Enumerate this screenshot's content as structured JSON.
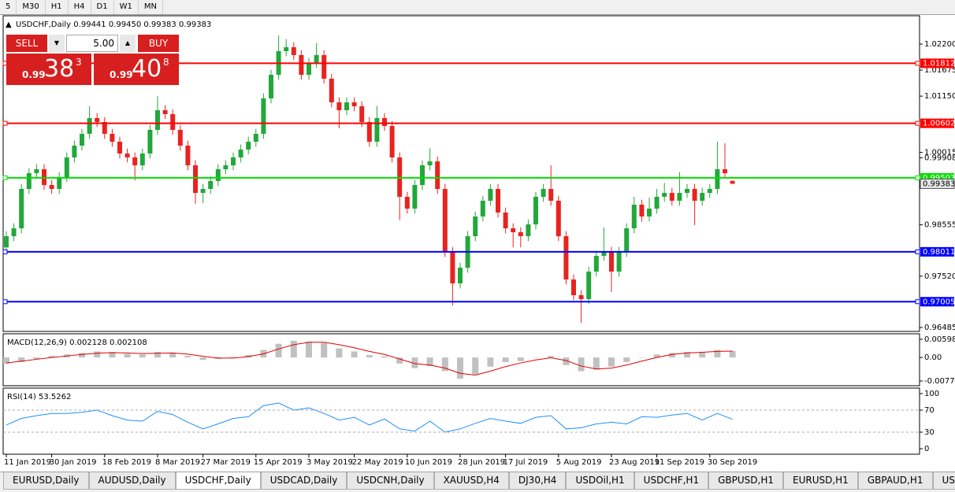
{
  "toolbar": {
    "timeframes": [
      "5",
      "M30",
      "H1",
      "H4",
      "D1",
      "W1",
      "MN"
    ]
  },
  "trade_panel": {
    "sell": "SELL",
    "lots": "5.00",
    "buy": "BUY",
    "bid": {
      "big_figure": "0.99",
      "pips": "38",
      "fraction": "3"
    },
    "ask": {
      "big_figure": "0.99",
      "pips": "40",
      "fraction": "8"
    }
  },
  "tabs": {
    "items": [
      "EURUSD,Daily",
      "AUDUSD,Daily",
      "USDCHF,Daily",
      "USDCAD,Daily",
      "USDCNH,Daily",
      "XAUUSD,H4",
      "DJ30,H4",
      "USDOil,H1",
      "USDCHF,H1",
      "GBPUSD,H1",
      "EURUSD,H1",
      "GBPAUD,H1",
      "USDJP"
    ],
    "active": 2
  },
  "chart_data": [
    {
      "type": "candlestick",
      "title": "USDCHF,Daily",
      "ohlc_labels": [
        "0.99441",
        "0.99450",
        "0.99383",
        "0.99383"
      ],
      "up_color": "#22a83a",
      "down_color": "#e8231f",
      "ylim": [
        0.96406,
        1.02771
      ],
      "yticks": [
        {
          "value": 1.022,
          "label": "1.02200"
        },
        {
          "value": 1.01675,
          "label": "1.01675"
        },
        {
          "value": 1.0115,
          "label": "1.01150"
        },
        {
          "value": 1.00015,
          "label": "1.00015"
        },
        {
          "value": 0.99908,
          "label": "0.99908"
        },
        {
          "value": 0.98555,
          "label": "0.98555"
        },
        {
          "value": 0.9752,
          "label": "0.97520"
        },
        {
          "value": 0.96485,
          "label": "0.96485"
        }
      ],
      "xticks": [
        {
          "value": 0,
          "label": "11 Jan 2019"
        },
        {
          "value": 6,
          "label": "30 Jan 2019"
        },
        {
          "value": 13,
          "label": "18 Feb 2019"
        },
        {
          "value": 20,
          "label": "8 Mar 2019"
        },
        {
          "value": 26,
          "label": "27 Mar 2019"
        },
        {
          "value": 33,
          "label": "15 Apr 2019"
        },
        {
          "value": 40,
          "label": "3 May 2019"
        },
        {
          "value": 46,
          "label": "22 May 2019"
        },
        {
          "value": 53,
          "label": "10 Jun 2019"
        },
        {
          "value": 60,
          "label": "28 Jun 2019"
        },
        {
          "value": 66,
          "label": "17 Jul 2019"
        },
        {
          "value": 73,
          "label": "5 Aug 2019"
        },
        {
          "value": 80,
          "label": "23 Aug 2019"
        },
        {
          "value": 86,
          "label": "11 Sep 2019"
        },
        {
          "value": 93,
          "label": "30 Sep 2019"
        }
      ],
      "levels": [
        {
          "value": 1.01812,
          "color": "#ff0000"
        },
        {
          "value": 1.00602,
          "color": "#ff0000"
        },
        {
          "value": 0.99503,
          "color": "#00e000"
        },
        {
          "value": 0.98011,
          "color": "#0000ff"
        },
        {
          "value": 0.97005,
          "color": "#0000ff"
        }
      ],
      "candles": [
        [
          0.981,
          0.98426,
          0.98,
          0.98326
        ],
        [
          0.98326,
          0.98585,
          0.98226,
          0.98485
        ],
        [
          0.98485,
          0.99379,
          0.98385,
          0.99279
        ],
        [
          0.99279,
          0.99696,
          0.99179,
          0.99596
        ],
        [
          0.99596,
          0.99776,
          0.99496,
          0.99676
        ],
        [
          0.99676,
          0.99776,
          0.99258,
          0.99358
        ],
        [
          0.99358,
          0.99458,
          0.99179,
          0.99279
        ],
        [
          0.99279,
          0.99617,
          0.99179,
          0.99517
        ],
        [
          0.99517,
          1.00014,
          0.99417,
          0.99914
        ],
        [
          0.99914,
          1.00252,
          0.99814,
          1.00152
        ],
        [
          1.00152,
          1.0049,
          1.00052,
          1.0039
        ],
        [
          1.0039,
          1.0095,
          1.0029,
          1.00708
        ],
        [
          1.00708,
          1.00808,
          1.00528,
          1.00628
        ],
        [
          1.00628,
          1.00728,
          1.0029,
          1.0039
        ],
        [
          1.0039,
          1.0049,
          1.00131,
          1.00231
        ],
        [
          1.00231,
          1.00331,
          0.99893,
          0.99993
        ],
        [
          0.99993,
          1.00093,
          0.99814,
          0.99914
        ],
        [
          0.99914,
          1.00014,
          0.9945,
          0.99755
        ],
        [
          0.99755,
          1.00093,
          0.99655,
          0.99993
        ],
        [
          0.99993,
          1.0057,
          0.99893,
          1.0047
        ],
        [
          1.0047,
          1.0115,
          1.0037,
          1.00866
        ],
        [
          1.00866,
          1.00966,
          1.00687,
          1.00787
        ],
        [
          1.00787,
          1.00887,
          1.0037,
          1.0047
        ],
        [
          1.0047,
          1.0057,
          1.00052,
          1.00152
        ],
        [
          1.00152,
          1.00252,
          0.99655,
          0.99755
        ],
        [
          0.99755,
          0.99855,
          0.9898,
          0.99199
        ],
        [
          0.99199,
          0.99379,
          0.9899,
          0.99279
        ],
        [
          0.99279,
          0.99538,
          0.99179,
          0.99438
        ],
        [
          0.99438,
          0.99776,
          0.99338,
          0.99676
        ],
        [
          0.99676,
          0.99855,
          0.99576,
          0.99755
        ],
        [
          0.99755,
          1.00014,
          0.99655,
          0.99914
        ],
        [
          0.99914,
          1.00173,
          0.99814,
          1.00073
        ],
        [
          1.00073,
          1.00331,
          0.99973,
          1.00231
        ],
        [
          1.00231,
          1.0049,
          1.00131,
          1.0039
        ],
        [
          1.0039,
          1.01205,
          1.0029,
          1.01105
        ],
        [
          1.01105,
          1.01681,
          1.01005,
          1.01581
        ],
        [
          1.01581,
          1.02375,
          1.01481,
          1.02057
        ],
        [
          1.02057,
          1.023,
          1.01957,
          1.02136
        ],
        [
          1.02136,
          1.02236,
          1.01878,
          1.01978
        ],
        [
          1.01978,
          1.02078,
          1.01481,
          1.01581
        ],
        [
          1.01581,
          1.01919,
          1.01481,
          1.01819
        ],
        [
          1.01819,
          1.0222,
          1.01719,
          1.01978
        ],
        [
          1.01978,
          1.02078,
          1.01401,
          1.01501
        ],
        [
          1.01501,
          1.01601,
          1.00925,
          1.01025
        ],
        [
          1.01025,
          1.01125,
          1.005,
          1.00866
        ],
        [
          1.00866,
          1.01125,
          1.00766,
          1.01025
        ],
        [
          1.01025,
          1.01125,
          1.00846,
          1.00946
        ],
        [
          1.00946,
          1.01046,
          1.00528,
          1.00628
        ],
        [
          1.00628,
          1.00728,
          1.00131,
          1.00231
        ],
        [
          1.00231,
          1.0095,
          1.00131,
          1.00708
        ],
        [
          1.00708,
          1.00808,
          1.00449,
          1.00549
        ],
        [
          1.00549,
          1.00649,
          0.99814,
          0.99914
        ],
        [
          0.99914,
          1.00014,
          0.9865,
          0.9912
        ],
        [
          0.9912,
          0.9922,
          0.98782,
          0.98882
        ],
        [
          0.98882,
          0.99458,
          0.98782,
          0.99358
        ],
        [
          0.99358,
          0.99855,
          0.99258,
          0.99755
        ],
        [
          0.99755,
          1.001,
          0.99655,
          0.99834
        ],
        [
          0.99834,
          0.99934,
          0.99179,
          0.99279
        ],
        [
          0.99279,
          0.99379,
          0.97909,
          0.98009
        ],
        [
          0.98009,
          0.98109,
          0.96929,
          0.97374
        ],
        [
          0.97374,
          0.97791,
          0.97274,
          0.97691
        ],
        [
          0.97691,
          0.98426,
          0.97591,
          0.98326
        ],
        [
          0.98326,
          0.98823,
          0.98226,
          0.98723
        ],
        [
          0.98723,
          0.99141,
          0.98623,
          0.99041
        ],
        [
          0.99041,
          0.99379,
          0.98941,
          0.99279
        ],
        [
          0.99279,
          0.99379,
          0.98703,
          0.98803
        ],
        [
          0.98803,
          0.98903,
          0.98385,
          0.98485
        ],
        [
          0.98485,
          0.98585,
          0.981,
          0.98406
        ],
        [
          0.98406,
          0.98506,
          0.981,
          0.98326
        ],
        [
          0.98326,
          0.98664,
          0.98226,
          0.98564
        ],
        [
          0.98564,
          0.9922,
          0.98464,
          0.9912
        ],
        [
          0.9912,
          0.99379,
          0.9902,
          0.99279
        ],
        [
          0.99279,
          0.99755,
          0.98941,
          0.99041
        ],
        [
          0.99041,
          0.99141,
          0.98226,
          0.98326
        ],
        [
          0.98326,
          0.98426,
          0.97353,
          0.97453
        ],
        [
          0.97453,
          0.97553,
          0.97036,
          0.97136
        ],
        [
          0.97136,
          0.97236,
          0.9658,
          0.97056
        ],
        [
          0.97056,
          0.97712,
          0.96956,
          0.97612
        ],
        [
          0.97612,
          0.98029,
          0.97512,
          0.97929
        ],
        [
          0.97929,
          0.985,
          0.97829,
          0.98009
        ],
        [
          0.98009,
          0.98109,
          0.972,
          0.97612
        ],
        [
          0.97612,
          0.98109,
          0.97512,
          0.98009
        ],
        [
          0.98009,
          0.98585,
          0.97909,
          0.98485
        ],
        [
          0.98485,
          0.9912,
          0.98385,
          0.98961
        ],
        [
          0.98961,
          0.99061,
          0.98623,
          0.98723
        ],
        [
          0.98723,
          0.991,
          0.98623,
          0.98882
        ],
        [
          0.98882,
          0.99279,
          0.98782,
          0.9912
        ],
        [
          0.9912,
          0.994,
          0.9902,
          0.99199
        ],
        [
          0.99199,
          0.99299,
          0.98941,
          0.99041
        ],
        [
          0.99041,
          0.9962,
          0.98941,
          0.99199
        ],
        [
          0.99199,
          0.99379,
          0.99099,
          0.99279
        ],
        [
          0.99279,
          0.99379,
          0.9855,
          0.99041
        ],
        [
          0.99041,
          0.99299,
          0.98941,
          0.99199
        ],
        [
          0.99199,
          0.99379,
          0.99099,
          0.99279
        ],
        [
          0.99279,
          1.00231,
          0.99179,
          0.99676
        ],
        [
          0.99676,
          1.002,
          0.99496,
          0.99596
        ],
        [
          0.99441,
          0.9945,
          0.99383,
          0.99383
        ]
      ]
    },
    {
      "type": "macd",
      "title": "MACD(12,26,9)",
      "ylim": [
        -0.009291,
        0.007799
      ],
      "yticks": [
        0.005986,
        {
          "value": 0,
          "label": "0.00"
        },
        -0.007737
      ],
      "x": [
        0,
        2,
        4,
        6,
        8,
        10,
        12,
        14,
        16,
        18,
        20,
        22,
        24,
        26,
        28,
        30,
        32,
        34,
        36,
        38,
        40,
        42,
        44,
        46,
        48,
        50,
        52,
        54,
        56,
        58,
        60,
        62,
        64,
        66,
        68,
        70,
        72,
        74,
        76,
        78,
        80,
        82,
        84,
        86,
        88,
        90,
        92,
        94,
        96
      ],
      "series": [
        {
          "kind": "bar",
          "color": "#c0c0c0",
          "values": [
            -0.002,
            -0.0015,
            -0.0005,
            0.0005,
            0.001,
            0.0015,
            0.002,
            0.0018,
            0.0012,
            0.001,
            0.0018,
            0.0015,
            0.0005,
            -0.0008,
            -0.0005,
            0.0002,
            0.0008,
            0.0025,
            0.0045,
            0.0055,
            0.0052,
            0.0048,
            0.003,
            0.002,
            0.0008,
            0.0004,
            -0.002,
            -0.0035,
            -0.0028,
            -0.0045,
            -0.007,
            -0.0055,
            -0.003,
            -0.0015,
            -0.0012,
            0,
            0.0005,
            -0.0025,
            -0.0045,
            -0.004,
            -0.003,
            -0.0015,
            0,
            0.001,
            0.0015,
            0.0018,
            0.0018,
            0.0025,
            0.002128
          ]
        },
        {
          "kind": "line",
          "color": "#e00000",
          "values": [
            -0.0018,
            -0.0012,
            -0.0006,
            0,
            0.0005,
            0.001,
            0.0014,
            0.0016,
            0.0015,
            0.0013,
            0.0014,
            0.0015,
            0.0011,
            0.0004,
            -0.0002,
            -0.0002,
            0.0003,
            0.0012,
            0.0028,
            0.0042,
            0.005,
            0.005,
            0.0042,
            0.0032,
            0.002,
            0.001,
            -0.0005,
            -0.002,
            -0.0025,
            -0.0035,
            -0.0052,
            -0.0058,
            -0.0045,
            -0.003,
            -0.0018,
            -0.0008,
            -0.0001,
            -0.001,
            -0.0028,
            -0.0038,
            -0.0035,
            -0.0025,
            -0.0012,
            0,
            0.001,
            0.0015,
            0.0017,
            0.002,
            0.002108
          ]
        }
      ]
    },
    {
      "type": "line",
      "title": "RSI(14)",
      "color": "#1e90ff",
      "ylim": [
        -10,
        110
      ],
      "yticks": [
        100,
        70,
        30,
        0
      ],
      "levels": [
        70,
        30
      ],
      "x": [
        0,
        2,
        4,
        6,
        8,
        10,
        12,
        14,
        16,
        18,
        20,
        22,
        24,
        26,
        28,
        30,
        32,
        34,
        36,
        38,
        40,
        42,
        44,
        46,
        48,
        50,
        52,
        54,
        56,
        58,
        60,
        62,
        64,
        66,
        68,
        70,
        72,
        74,
        76,
        78,
        80,
        82,
        84,
        86,
        88,
        90,
        92,
        94,
        96
      ],
      "values": [
        43,
        55,
        60,
        64,
        64,
        66,
        70,
        60,
        52,
        50,
        68,
        62,
        48,
        36,
        45,
        55,
        58,
        78,
        83,
        70,
        74,
        64,
        52,
        57,
        43,
        54,
        36,
        32,
        50,
        30,
        36,
        46,
        55,
        50,
        46,
        57,
        60,
        36,
        38,
        45,
        48,
        45,
        58,
        57,
        61,
        64,
        52,
        64,
        53.5262
      ]
    }
  ]
}
